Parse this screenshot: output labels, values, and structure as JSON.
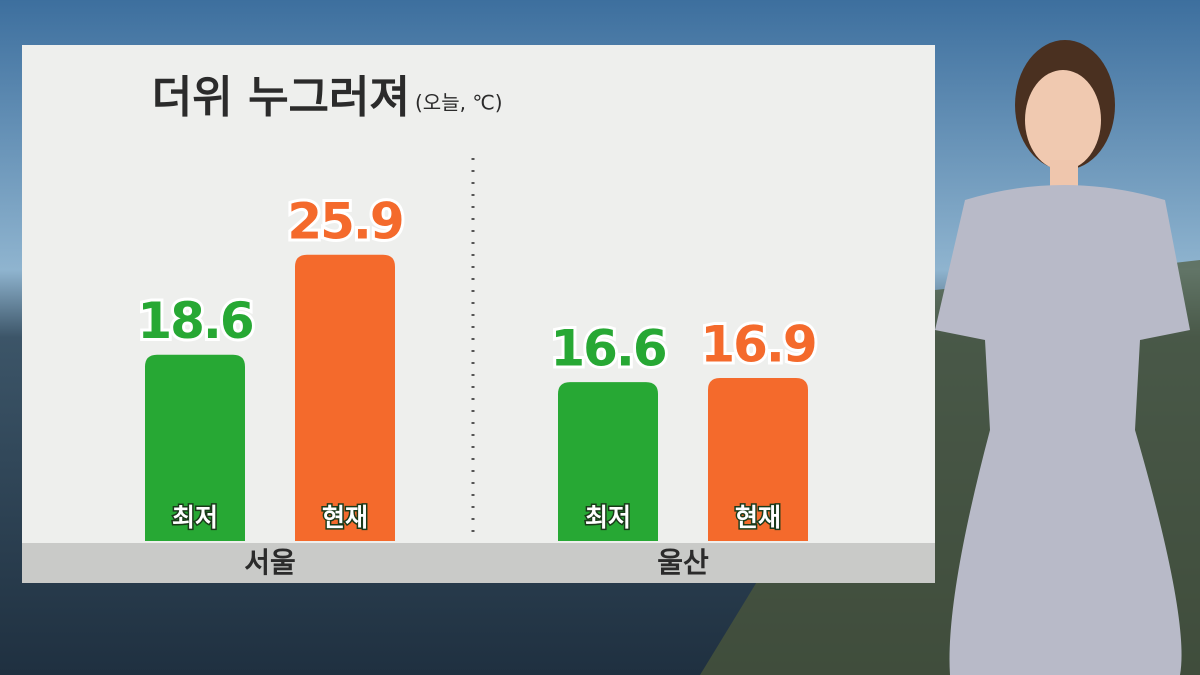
{
  "chart_data": {
    "type": "bar",
    "title": "더위 누그러져",
    "subtitle": "(오늘, ℃)",
    "categories": [
      "서울",
      "울산"
    ],
    "series": [
      {
        "name": "최저",
        "color": "#27a834",
        "values": [
          18.6,
          16.6
        ]
      },
      {
        "name": "현재",
        "color": "#f46a2c",
        "values": [
          25.9,
          16.9
        ]
      }
    ],
    "ylim": [
      5,
      28
    ]
  }
}
